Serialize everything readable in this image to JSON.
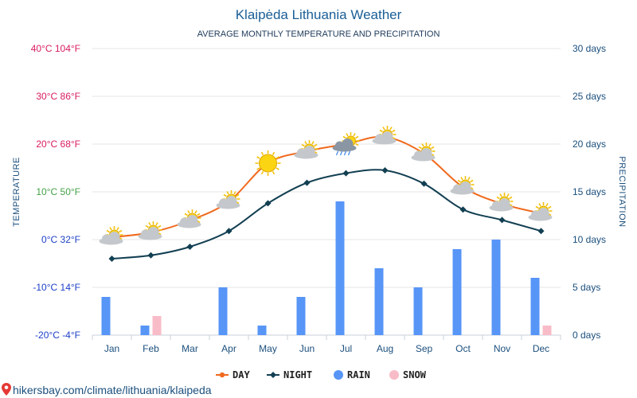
{
  "chart_data": {
    "type": "line",
    "title": "Klaipėda Lithuania Weather",
    "subtitle": "AVERAGE MONTHLY TEMPERATURE AND PRECIPITATION",
    "ylabel": "TEMPERATURE",
    "y2label": "PRECIPITATION",
    "categories": [
      "Jan",
      "Feb",
      "Mar",
      "Apr",
      "May",
      "Jun",
      "Jul",
      "Aug",
      "Sep",
      "Oct",
      "Nov",
      "Dec"
    ],
    "temp_ticks": [
      {
        "value": 40,
        "label": "40°C 104°F",
        "color": "#d81b60"
      },
      {
        "value": 30,
        "label": "30°C 86°F",
        "color": "#d81b60"
      },
      {
        "value": 20,
        "label": "20°C 68°F",
        "color": "#d81b60"
      },
      {
        "value": 10,
        "label": "10°C 50°F",
        "color": "#43a047"
      },
      {
        "value": 0,
        "label": "0°C 32°F",
        "color": "#1e40c8"
      },
      {
        "value": -10,
        "label": "-10°C 14°F",
        "color": "#1e40c8"
      },
      {
        "value": -20,
        "label": "-20°C -4°F",
        "color": "#1e40c8"
      }
    ],
    "precip_ticks": [
      {
        "value": 30,
        "label": "30 days"
      },
      {
        "value": 25,
        "label": "25 days"
      },
      {
        "value": 20,
        "label": "20 days"
      },
      {
        "value": 15,
        "label": "15 days"
      },
      {
        "value": 10,
        "label": "10 days"
      },
      {
        "value": 5,
        "label": "5 days"
      },
      {
        "value": 0,
        "label": "0 days"
      }
    ],
    "ylim": [
      -20,
      40
    ],
    "y2lim": [
      0,
      30
    ],
    "series": [
      {
        "name": "DAY",
        "kind": "line",
        "axis": "temperature",
        "color": "#f06a1e",
        "values": [
          0.5,
          1.5,
          4,
          8,
          16,
          18.5,
          20,
          21.5,
          18,
          11,
          7.5,
          5.5
        ]
      },
      {
        "name": "NIGHT",
        "kind": "line",
        "axis": "temperature",
        "color": "#123f52",
        "values": [
          -4,
          -3.3,
          -1.5,
          1.8,
          7.6,
          11.9,
          13.9,
          14.5,
          11.7,
          6.3,
          4.1,
          1.8
        ]
      },
      {
        "name": "RAIN",
        "kind": "bar",
        "axis": "precipitation",
        "color": "#5795f7",
        "values": [
          4,
          1,
          0,
          5,
          1,
          4,
          14,
          7,
          5,
          9,
          10,
          6
        ]
      },
      {
        "name": "SNOW",
        "kind": "bar",
        "axis": "precipitation",
        "color": "#f8bcc8",
        "values": [
          0,
          2,
          0,
          0,
          0,
          0,
          0,
          0,
          0,
          0,
          0,
          1
        ]
      }
    ],
    "weather_icons": [
      "partly-cloudy",
      "partly-cloudy",
      "partly-cloudy",
      "partly-cloudy",
      "sunny",
      "partly-cloudy",
      "rain-showers",
      "partly-cloudy",
      "partly-cloudy",
      "partly-cloudy",
      "partly-cloudy",
      "partly-cloudy"
    ],
    "grid": true,
    "legend_position": "bottom-center"
  },
  "footer": {
    "text": "hikersbay.com/climate/lithuania/klaipeda"
  }
}
